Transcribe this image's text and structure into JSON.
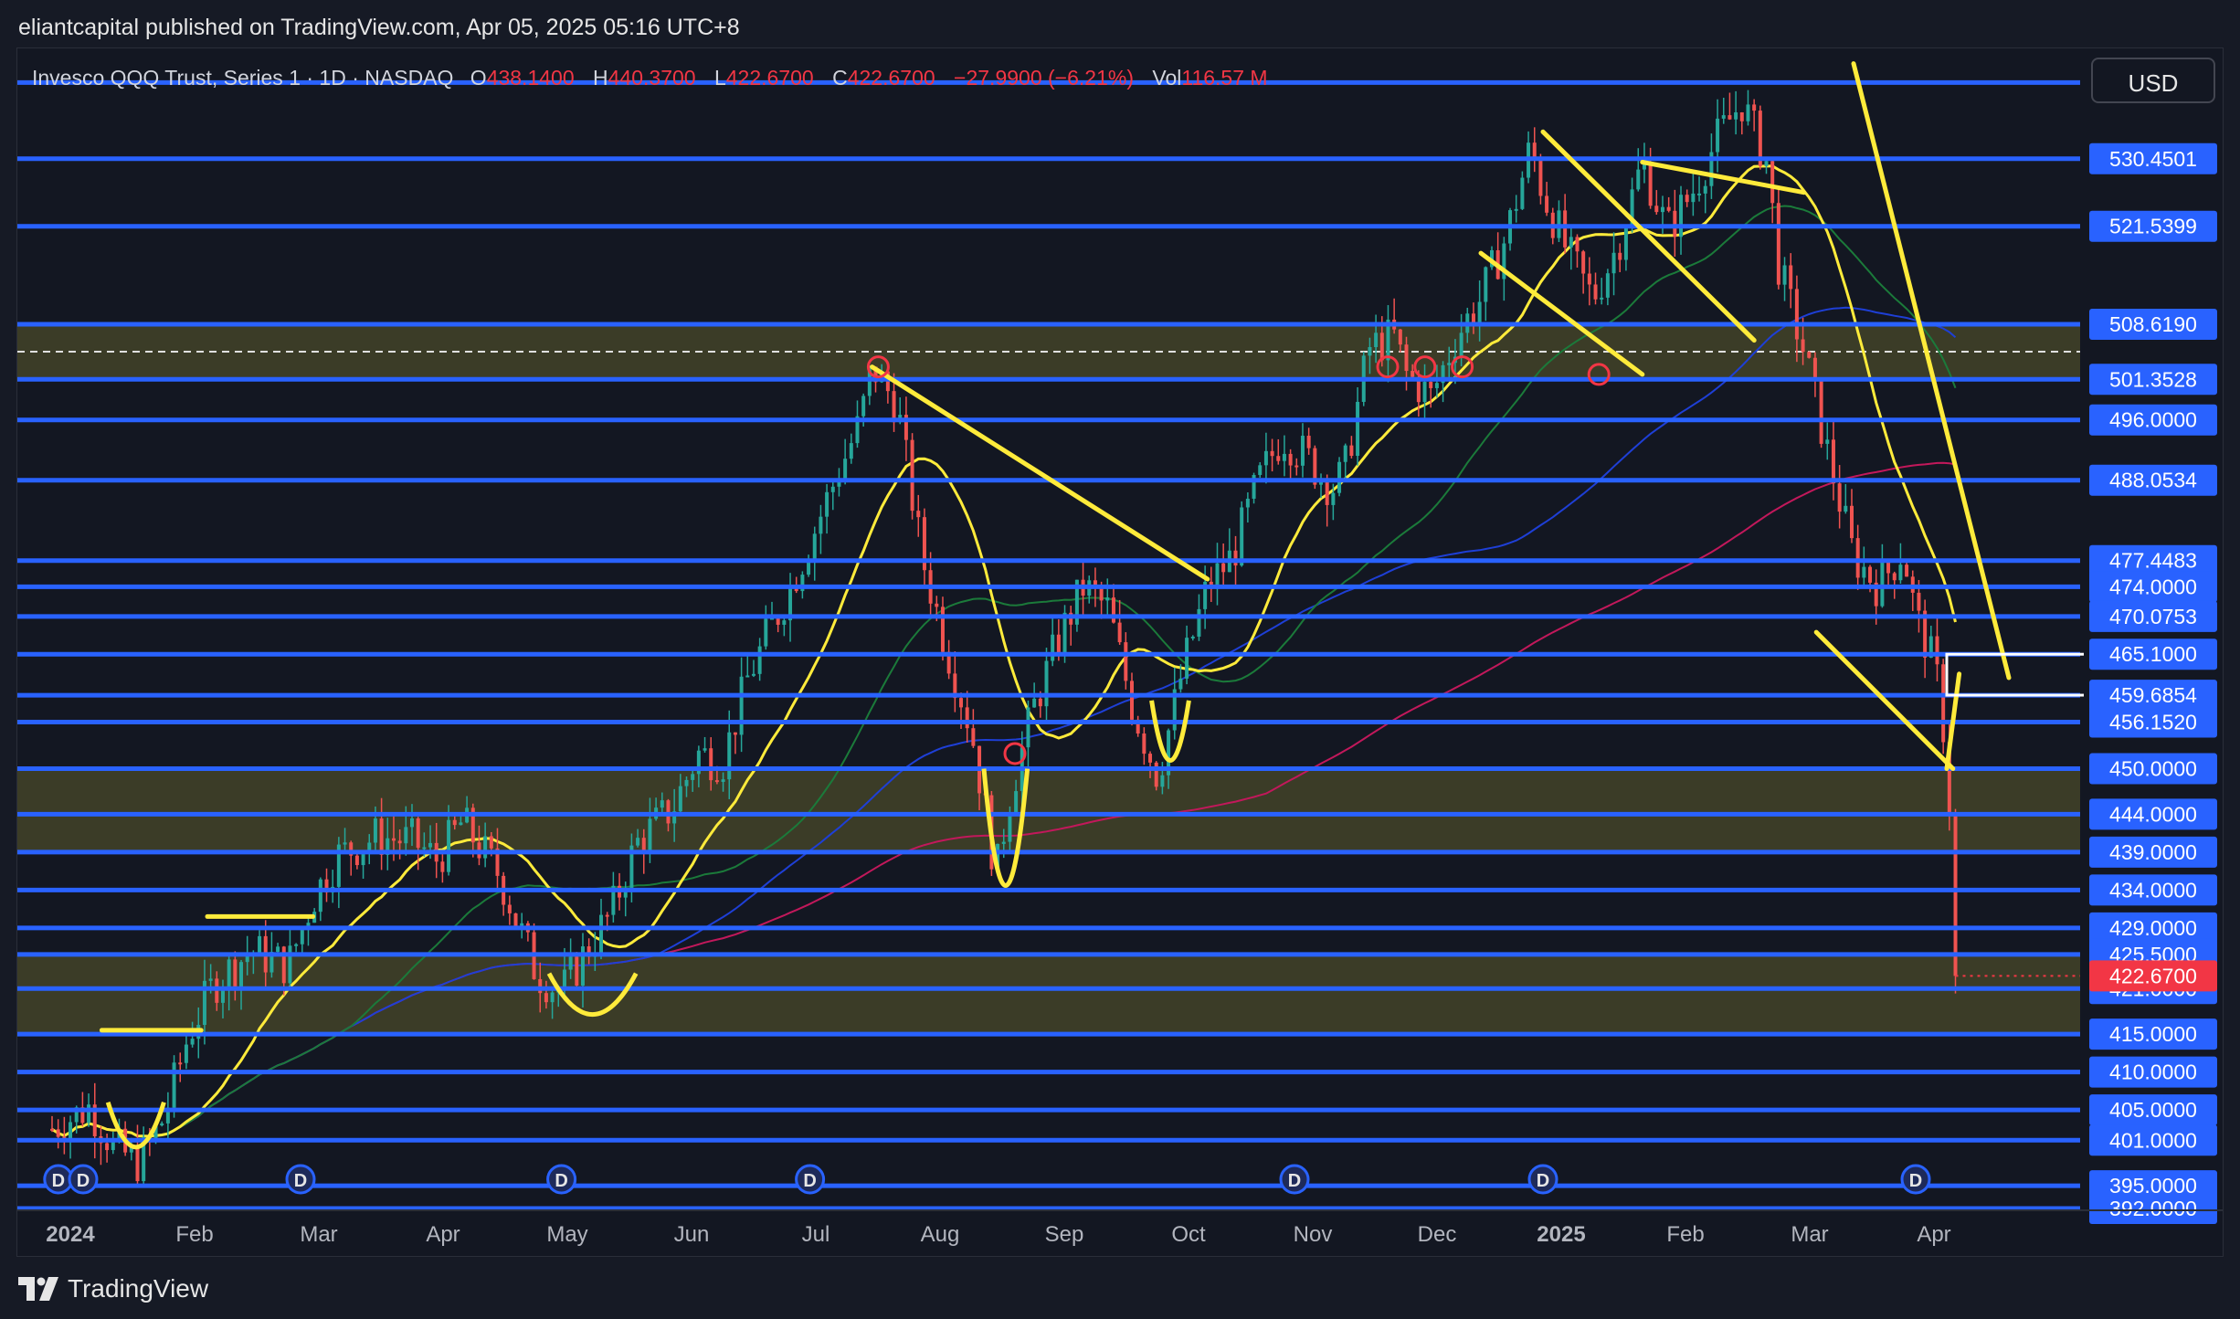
{
  "header": {
    "publisher": "eliantcapital published on TradingView.com, Apr 05, 2025 05:16 UTC+8"
  },
  "legend": {
    "symbol": "Invesco QQQ Trust, Series 1 · 1D · NASDAQ",
    "open_label": "O",
    "open": "438.1400",
    "high_label": "H",
    "high": "440.3700",
    "low_label": "L",
    "low": "422.6700",
    "close_label": "C",
    "close": "422.6700",
    "change": "−27.9900 (−6.21%)",
    "vol_label": "Vol",
    "vol": "116.57 M"
  },
  "currency": "USD",
  "footer": {
    "brand": "TradingView"
  },
  "colors": {
    "background": "#131722",
    "level_line": "#2962ff",
    "level_label_bg": "#2962ff",
    "last_price": "#f23645",
    "up_candle": "#26a69a",
    "down_candle": "#ef5350",
    "annotation": "#ffeb3b",
    "zone_fill": "#4a4a2a"
  },
  "chart_data": {
    "type": "candlestick",
    "y_range": [
      392,
      545
    ],
    "x_labels": [
      "2024",
      "Feb",
      "Mar",
      "Apr",
      "May",
      "Jun",
      "Jul",
      "Aug",
      "Sep",
      "Oct",
      "Nov",
      "Dec",
      "2025",
      "Feb",
      "Mar",
      "Apr"
    ],
    "x_label_months": [
      0,
      1,
      2,
      3,
      4,
      5,
      6,
      7,
      8,
      9,
      10,
      11,
      12,
      13,
      14,
      15
    ],
    "bold_labels": [
      "2024",
      "2025"
    ],
    "levels": [
      {
        "value": 530.4501,
        "label": "530.4501"
      },
      {
        "value": 521.5399,
        "label": "521.5399"
      },
      {
        "value": 508.619,
        "label": "508.6190"
      },
      {
        "value": 501.3528,
        "label": "501.3528"
      },
      {
        "value": 496.0,
        "label": "496.0000"
      },
      {
        "value": 488.0534,
        "label": "488.0534"
      },
      {
        "value": 477.4483,
        "label": "477.4483"
      },
      {
        "value": 474.0,
        "label": "474.0000"
      },
      {
        "value": 470.0753,
        "label": "470.0753"
      },
      {
        "value": 465.1,
        "label": "465.1000"
      },
      {
        "value": 459.6854,
        "label": "459.6854"
      },
      {
        "value": 456.152,
        "label": "456.1520"
      },
      {
        "value": 450.0,
        "label": "450.0000"
      },
      {
        "value": 444.0,
        "label": "444.0000"
      },
      {
        "value": 439.0,
        "label": "439.0000"
      },
      {
        "value": 434.0,
        "label": "434.0000"
      },
      {
        "value": 429.0,
        "label": "429.0000"
      },
      {
        "value": 425.5,
        "label": "425.5000"
      },
      {
        "value": 421.0,
        "label": "421.0000"
      },
      {
        "value": 415.0,
        "label": "415.0000"
      },
      {
        "value": 410.0,
        "label": "410.0000"
      },
      {
        "value": 405.0,
        "label": "405.0000"
      },
      {
        "value": 401.0,
        "label": "401.0000"
      },
      {
        "value": 395.0,
        "label": "395.0000"
      },
      {
        "value": 392.0,
        "label": "392.0000"
      }
    ],
    "extra_lines": [
      540.5
    ],
    "zones": [
      {
        "from": 501.35,
        "to": 508.62,
        "mid": 505.0
      },
      {
        "from": 439.0,
        "to": 450.0,
        "mid": 444.0
      },
      {
        "from": 415.0,
        "to": 425.5,
        "mid": 421.0
      }
    ],
    "last_price": {
      "value": 422.67,
      "label": "422.6700"
    },
    "closes": [
      [
        0.0,
        402.5
      ],
      [
        0.3,
        405.4
      ],
      [
        0.5,
        400.0
      ],
      [
        0.7,
        398.0
      ],
      [
        0.9,
        404.0
      ],
      [
        1.1,
        415.0
      ],
      [
        1.3,
        421.6
      ],
      [
        1.6,
        426.0
      ],
      [
        1.9,
        424.0
      ],
      [
        2.1,
        433.0
      ],
      [
        2.3,
        438.5
      ],
      [
        2.6,
        441.0
      ],
      [
        2.9,
        440.5
      ],
      [
        3.1,
        438.0
      ],
      [
        3.3,
        443.0
      ],
      [
        3.6,
        436.0
      ],
      [
        3.9,
        423.0
      ],
      [
        4.1,
        420.5
      ],
      [
        4.3,
        426.0
      ],
      [
        4.5,
        431.0
      ],
      [
        4.7,
        440.0
      ],
      [
        5.0,
        445.0
      ],
      [
        5.2,
        452.0
      ],
      [
        5.4,
        451.0
      ],
      [
        5.6,
        462.0
      ],
      [
        5.9,
        472.5
      ],
      [
        6.1,
        480.0
      ],
      [
        6.3,
        488.0
      ],
      [
        6.5,
        495.5
      ],
      [
        6.6,
        503.0
      ],
      [
        6.8,
        498.0
      ],
      [
        7.0,
        478.0
      ],
      [
        7.2,
        466.0
      ],
      [
        7.4,
        455.0
      ],
      [
        7.6,
        436.0
      ],
      [
        7.7,
        446.0
      ],
      [
        7.9,
        458.0
      ],
      [
        8.1,
        467.0
      ],
      [
        8.3,
        474.0
      ],
      [
        8.5,
        471.0
      ],
      [
        8.7,
        458.0
      ],
      [
        8.9,
        449.0
      ],
      [
        9.1,
        463.0
      ],
      [
        9.3,
        474.0
      ],
      [
        9.5,
        478.0
      ],
      [
        9.7,
        487.5
      ],
      [
        9.9,
        494.0
      ],
      [
        10.1,
        491.0
      ],
      [
        10.3,
        487.0
      ],
      [
        10.4,
        489.0
      ],
      [
        10.6,
        505.5
      ],
      [
        10.8,
        507.0
      ],
      [
        10.9,
        502.0
      ],
      [
        11.1,
        499.0
      ],
      [
        11.3,
        507.0
      ],
      [
        11.5,
        512.0
      ],
      [
        11.7,
        520.0
      ],
      [
        11.9,
        532.0
      ],
      [
        12.0,
        526.0
      ],
      [
        12.2,
        518.0
      ],
      [
        12.4,
        512.0
      ],
      [
        12.6,
        519.0
      ],
      [
        12.8,
        530.0
      ],
      [
        13.0,
        521.0
      ],
      [
        13.2,
        526.0
      ],
      [
        13.4,
        533.0
      ],
      [
        13.6,
        538.0
      ],
      [
        13.8,
        530.0
      ],
      [
        13.9,
        516.0
      ],
      [
        14.1,
        505.0
      ],
      [
        14.3,
        491.0
      ],
      [
        14.5,
        478.0
      ],
      [
        14.7,
        474.0
      ],
      [
        14.9,
        479.0
      ],
      [
        15.0,
        470.0
      ],
      [
        15.1,
        466.0
      ],
      [
        15.2,
        460.0
      ],
      [
        15.25,
        450.0
      ],
      [
        15.3,
        439.0
      ],
      [
        15.32,
        422.67
      ]
    ]
  }
}
